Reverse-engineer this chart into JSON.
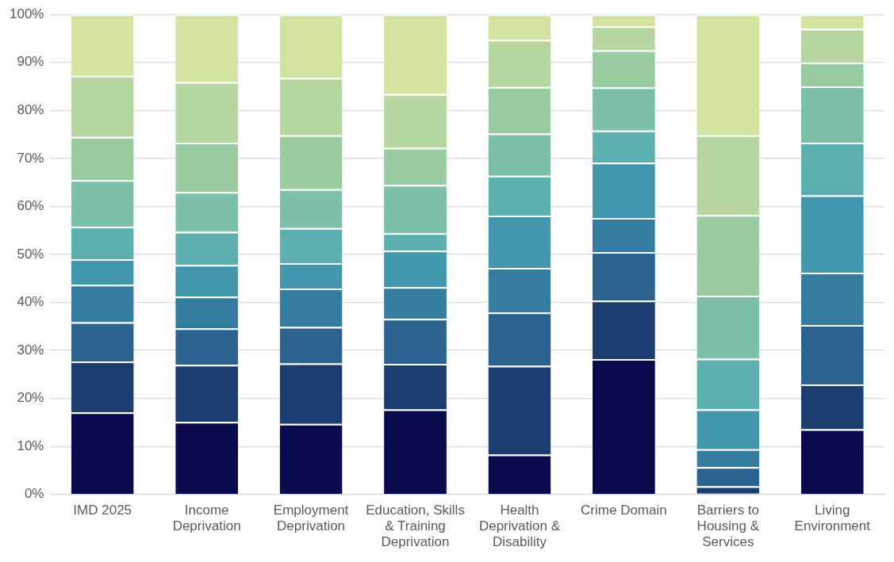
{
  "chart_data": {
    "type": "bar",
    "stacked": true,
    "grid": "y",
    "legend": false,
    "categories": [
      "IMD 2025",
      "Income Deprivation",
      "Employment Deprivation",
      "Education, Skills & Training Deprivation",
      "Health Deprivation & Disability",
      "Crime Domain",
      "Barriers to Housing & Services",
      "Living Environment"
    ],
    "ylim": [
      0,
      100
    ],
    "yticks": [
      {
        "value": 0,
        "label": "0%"
      },
      {
        "value": 10,
        "label": "10%"
      },
      {
        "value": 20,
        "label": "20%"
      },
      {
        "value": 30,
        "label": "30%"
      },
      {
        "value": 40,
        "label": "40%"
      },
      {
        "value": 50,
        "label": "50%"
      },
      {
        "value": 60,
        "label": "60%"
      },
      {
        "value": 70,
        "label": "70%"
      },
      {
        "value": 80,
        "label": "80%"
      },
      {
        "value": 90,
        "label": "90%"
      },
      {
        "value": 100,
        "label": "100%"
      }
    ],
    "series": [
      {
        "color": "#0a0b4f",
        "values": [
          17.1,
          15.1,
          14.7,
          17.7,
          8.3,
          28.2,
          0.3,
          13.6
        ]
      },
      {
        "color": "#1b3d70",
        "values": [
          10.6,
          11.9,
          12.6,
          9.5,
          18.5,
          12.2,
          1.4,
          9.3
        ]
      },
      {
        "color": "#2c628f",
        "values": [
          8.2,
          7.6,
          7.6,
          9.4,
          11.1,
          10.1,
          4.0,
          12.4
        ]
      },
      {
        "color": "#357ca1",
        "values": [
          7.8,
          6.6,
          8.0,
          6.6,
          9.3,
          7.1,
          3.7,
          10.9
        ]
      },
      {
        "color": "#4296ad",
        "values": [
          5.3,
          6.6,
          5.3,
          7.6,
          10.9,
          11.5,
          8.3,
          16.1
        ]
      },
      {
        "color": "#5cb0b0",
        "values": [
          6.8,
          6.9,
          7.3,
          3.6,
          8.3,
          6.7,
          10.6,
          11.0
        ]
      },
      {
        "color": "#7cc0a8",
        "values": [
          9.7,
          8.3,
          8.1,
          10.1,
          8.8,
          9.0,
          13.1,
          11.7
        ]
      },
      {
        "color": "#9acca2",
        "values": [
          9.0,
          10.3,
          11.2,
          7.7,
          9.7,
          7.7,
          16.8,
          5.0
        ]
      },
      {
        "color": "#b6d79f",
        "values": [
          12.7,
          12.6,
          12.0,
          11.2,
          9.8,
          5.0,
          16.6,
          7.0
        ]
      },
      {
        "color": "#d3e4a0",
        "values": [
          12.8,
          14.1,
          13.2,
          16.6,
          5.3,
          2.5,
          25.2,
          3.0
        ]
      }
    ]
  }
}
